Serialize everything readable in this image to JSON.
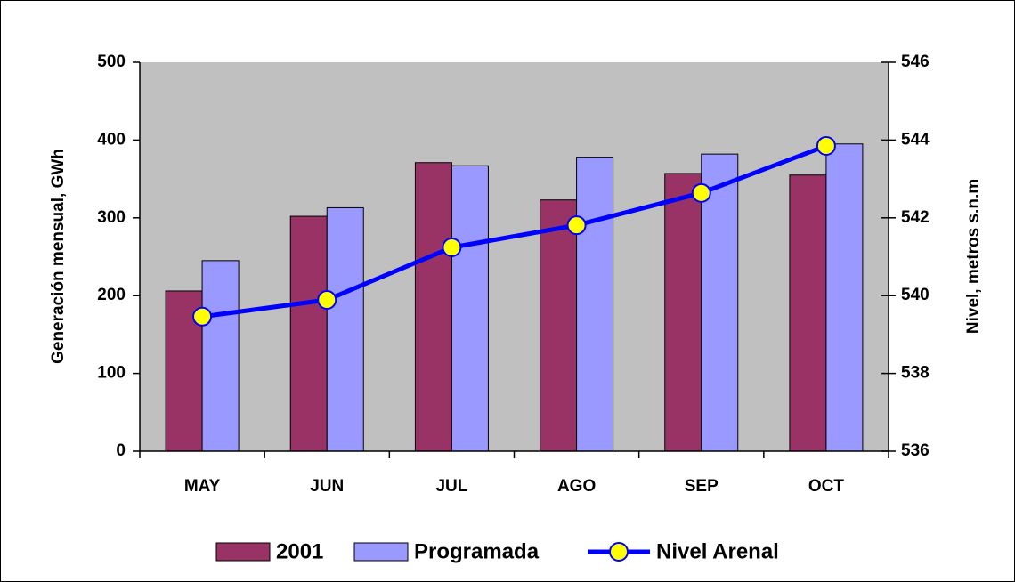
{
  "chart_data": {
    "type": "combo",
    "categories": [
      "MAY",
      "JUN",
      "JUL",
      "AGO",
      "SEP",
      "OCT"
    ],
    "series": [
      {
        "name": "2001",
        "type": "bar",
        "color": "#993366",
        "values": [
          206,
          302,
          371,
          323,
          357,
          355
        ]
      },
      {
        "name": "Programada",
        "type": "bar",
        "color": "#9999ff",
        "values": [
          245,
          313,
          367,
          378,
          382,
          395
        ]
      },
      {
        "name": "Nivel Arenal",
        "type": "line",
        "axis": "y2",
        "color": "#0000ff",
        "marker_color": "#ffff00",
        "values": [
          539.46,
          539.89,
          541.24,
          541.81,
          542.64,
          543.85
        ]
      }
    ],
    "y_label": "Generación mensual, GWh",
    "y2_label": "Nivel, metros s.n.m",
    "ylim": [
      0,
      500
    ],
    "yticks": [
      0,
      100,
      200,
      300,
      400,
      500
    ],
    "y2lim": [
      536,
      546
    ],
    "y2ticks": [
      536,
      538,
      540,
      542,
      544,
      546
    ],
    "plot_background": "#c0c0c0",
    "legend": "bottom"
  }
}
